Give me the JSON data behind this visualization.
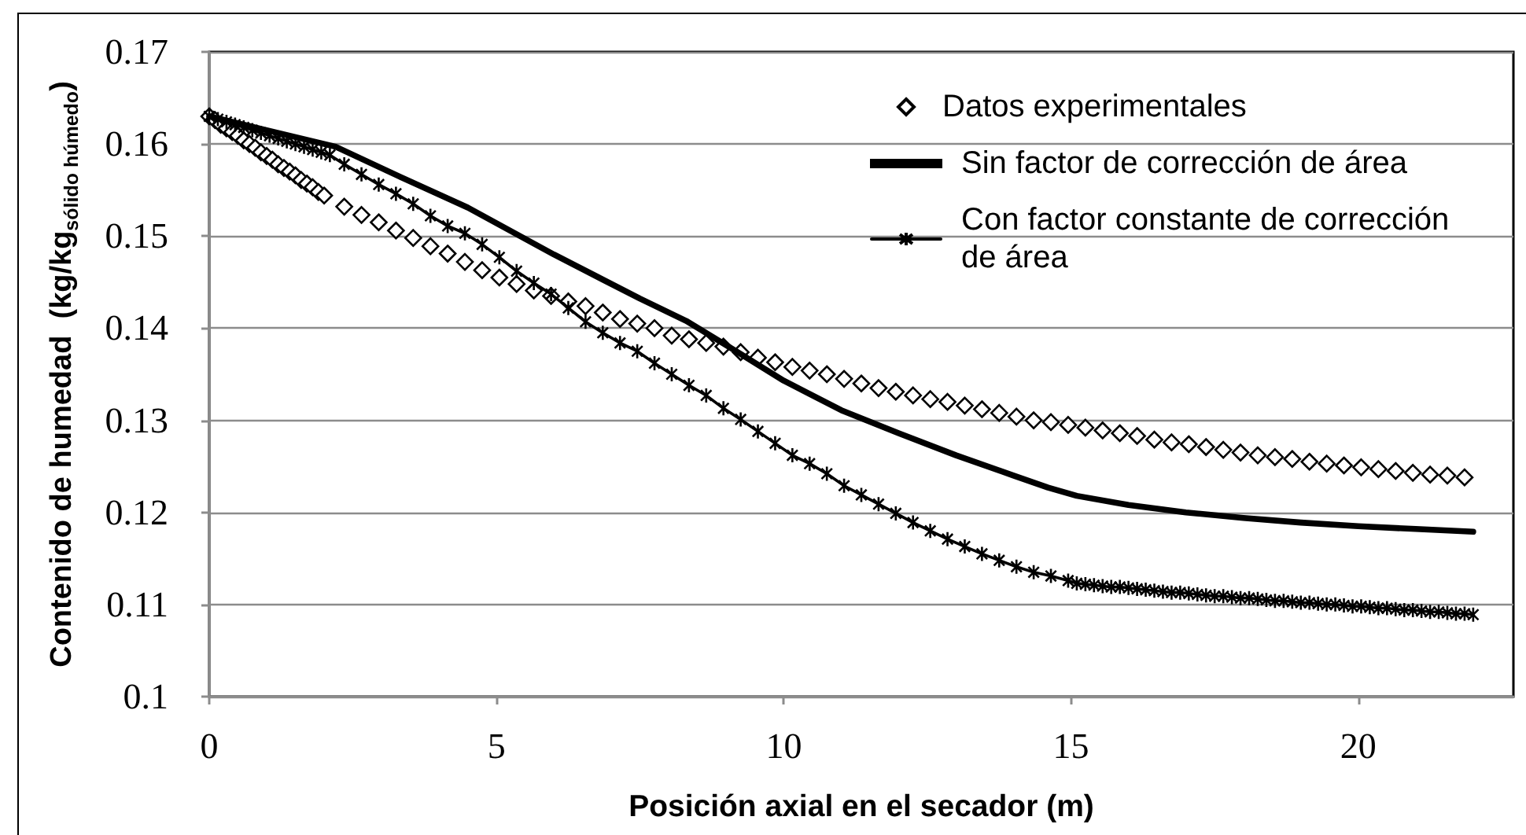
{
  "chart_data": {
    "type": "line",
    "xlabel": "Posición axial en el secador (m)",
    "ylabel": "Contenido de humedad  (kg/kg$_{sólido húmedo}$)",
    "xlim": [
      0,
      22.7
    ],
    "xticks": [
      0,
      5,
      10,
      15,
      20
    ],
    "ylim": [
      0.1,
      0.17
    ],
    "yticks": [
      0.1,
      0.11,
      0.12,
      0.13,
      0.14,
      0.15,
      0.16,
      0.17
    ],
    "grid": "y",
    "legend": "top right",
    "series": [
      {
        "name": "Datos experimentales",
        "type": "scatter",
        "marker": "diamond",
        "color": "#000000",
        "x": [
          0,
          0.1,
          0.2,
          0.3,
          0.4,
          0.5,
          0.6,
          0.7,
          0.8,
          0.9,
          1.0,
          1.1,
          1.2,
          1.3,
          1.4,
          1.5,
          1.6,
          1.7,
          1.8,
          1.9,
          2.0,
          2.35,
          2.65,
          2.95,
          3.25,
          3.55,
          3.85,
          4.15,
          4.45,
          4.75,
          5.05,
          5.35,
          5.65,
          5.95,
          6.25,
          6.55,
          6.85,
          7.15,
          7.45,
          7.75,
          8.05,
          8.35,
          8.65,
          8.95,
          9.25,
          9.55,
          9.85,
          10.15,
          10.45,
          10.75,
          11.05,
          11.35,
          11.65,
          11.95,
          12.25,
          12.55,
          12.85,
          13.15,
          13.45,
          13.75,
          14.05,
          14.35,
          14.65,
          14.95,
          15.25,
          15.55,
          15.85,
          16.15,
          16.45,
          16.75,
          17.05,
          17.35,
          17.65,
          17.95,
          18.25,
          18.55,
          18.85,
          19.15,
          19.45,
          19.75,
          20.05,
          20.35,
          20.65,
          20.95,
          21.25,
          21.55,
          21.85
        ],
        "values": [
          0.163,
          0.1626,
          0.1621,
          0.1617,
          0.1613,
          0.1609,
          0.1604,
          0.16,
          0.1596,
          0.1591,
          0.1587,
          0.1583,
          0.1578,
          0.1574,
          0.157,
          0.1566,
          0.1561,
          0.1557,
          0.1553,
          0.1548,
          0.1544,
          0.1532,
          0.1523,
          0.1515,
          0.1506,
          0.1498,
          0.1489,
          0.1481,
          0.1472,
          0.1463,
          0.1455,
          0.1448,
          0.1441,
          0.1435,
          0.1429,
          0.1424,
          0.1417,
          0.141,
          0.1405,
          0.14,
          0.1392,
          0.1388,
          0.1384,
          0.138,
          0.1374,
          0.1368,
          0.1363,
          0.1358,
          0.1354,
          0.135,
          0.1345,
          0.134,
          0.1335,
          0.1331,
          0.1327,
          0.1323,
          0.132,
          0.1316,
          0.1312,
          0.1308,
          0.1304,
          0.13,
          0.1298,
          0.1295,
          0.1292,
          0.1289,
          0.1286,
          0.1283,
          0.1279,
          0.1276,
          0.1274,
          0.1271,
          0.1268,
          0.1265,
          0.1262,
          0.126,
          0.1258,
          0.1255,
          0.1253,
          0.1251,
          0.1249,
          0.1247,
          0.1245,
          0.1243,
          0.1241,
          0.124,
          0.1238
        ]
      },
      {
        "name": "Sin factor de corrección de área",
        "color": "#000000",
        "x": [
          0,
          1,
          2.2,
          3.3,
          4.5,
          6,
          7.5,
          8.3,
          9.2,
          10,
          11,
          12,
          13,
          14,
          14.6,
          15.1,
          16,
          17,
          18,
          19,
          20,
          21,
          22
        ],
        "values": [
          0.163,
          0.1615,
          0.1597,
          0.1565,
          0.1531,
          0.148,
          0.1432,
          0.1408,
          0.1374,
          0.1343,
          0.1311,
          0.1286,
          0.1262,
          0.124,
          0.1227,
          0.1218,
          0.1208,
          0.12,
          0.1194,
          0.1189,
          0.1185,
          0.1182,
          0.1179
        ]
      },
      {
        "name": "Con factor constante de corrección de área",
        "type": "line",
        "marker": "cross",
        "color": "#000000",
        "x": [
          0,
          0.15,
          0.3,
          0.45,
          0.6,
          0.75,
          0.9,
          1.05,
          1.2,
          1.35,
          1.5,
          1.65,
          1.8,
          1.95,
          2.1,
          2.35,
          2.65,
          2.95,
          3.25,
          3.55,
          3.85,
          4.15,
          4.45,
          4.75,
          5.05,
          5.35,
          5.65,
          5.95,
          6.25,
          6.55,
          6.85,
          7.15,
          7.45,
          7.75,
          8.05,
          8.35,
          8.65,
          8.95,
          9.25,
          9.55,
          9.85,
          10.15,
          10.45,
          10.75,
          11.05,
          11.35,
          11.65,
          11.95,
          12.25,
          12.55,
          12.85,
          13.15,
          13.45,
          13.75,
          14.05,
          14.35,
          14.65,
          14.95,
          15.1,
          15.25,
          15.4,
          15.55,
          15.7,
          15.85,
          16.0,
          16.15,
          16.3,
          16.45,
          16.6,
          16.75,
          16.9,
          17.05,
          17.2,
          17.35,
          17.5,
          17.65,
          17.8,
          17.95,
          18.1,
          18.25,
          18.4,
          18.55,
          18.7,
          18.85,
          19.0,
          19.15,
          19.3,
          19.45,
          19.6,
          19.75,
          19.9,
          20.05,
          20.2,
          20.35,
          20.5,
          20.65,
          20.8,
          20.95,
          21.1,
          21.25,
          21.4,
          21.55,
          21.7,
          21.85,
          22.0
        ],
        "values": [
          0.163,
          0.1627,
          0.1624,
          0.1621,
          0.1618,
          0.1615,
          0.1612,
          0.1609,
          0.1606,
          0.1603,
          0.16,
          0.1597,
          0.1594,
          0.1591,
          0.1588,
          0.1578,
          0.1567,
          0.1556,
          0.1546,
          0.1535,
          0.1522,
          0.1511,
          0.1503,
          0.1491,
          0.1477,
          0.1462,
          0.1449,
          0.1437,
          0.1422,
          0.1407,
          0.1395,
          0.1384,
          0.1375,
          0.1362,
          0.135,
          0.1338,
          0.1327,
          0.1313,
          0.1301,
          0.1288,
          0.1275,
          0.1262,
          0.1253,
          0.1242,
          0.1229,
          0.1219,
          0.1209,
          0.1199,
          0.1189,
          0.118,
          0.1171,
          0.1163,
          0.1155,
          0.1148,
          0.1141,
          0.1135,
          0.1131,
          0.1126,
          0.1123,
          0.1122,
          0.1121,
          0.112,
          0.1119,
          0.1119,
          0.1118,
          0.1117,
          0.1116,
          0.1115,
          0.1114,
          0.1113,
          0.1113,
          0.1112,
          0.1111,
          0.111,
          0.1109,
          0.1109,
          0.1108,
          0.1107,
          0.1107,
          0.1106,
          0.1105,
          0.1104,
          0.1104,
          0.1103,
          0.1102,
          0.1102,
          0.1101,
          0.11,
          0.11,
          0.1099,
          0.1098,
          0.1098,
          0.1097,
          0.1096,
          0.1096,
          0.1095,
          0.1094,
          0.1094,
          0.1093,
          0.1092,
          0.1092,
          0.1091,
          0.109,
          0.109,
          0.1089
        ]
      }
    ]
  }
}
